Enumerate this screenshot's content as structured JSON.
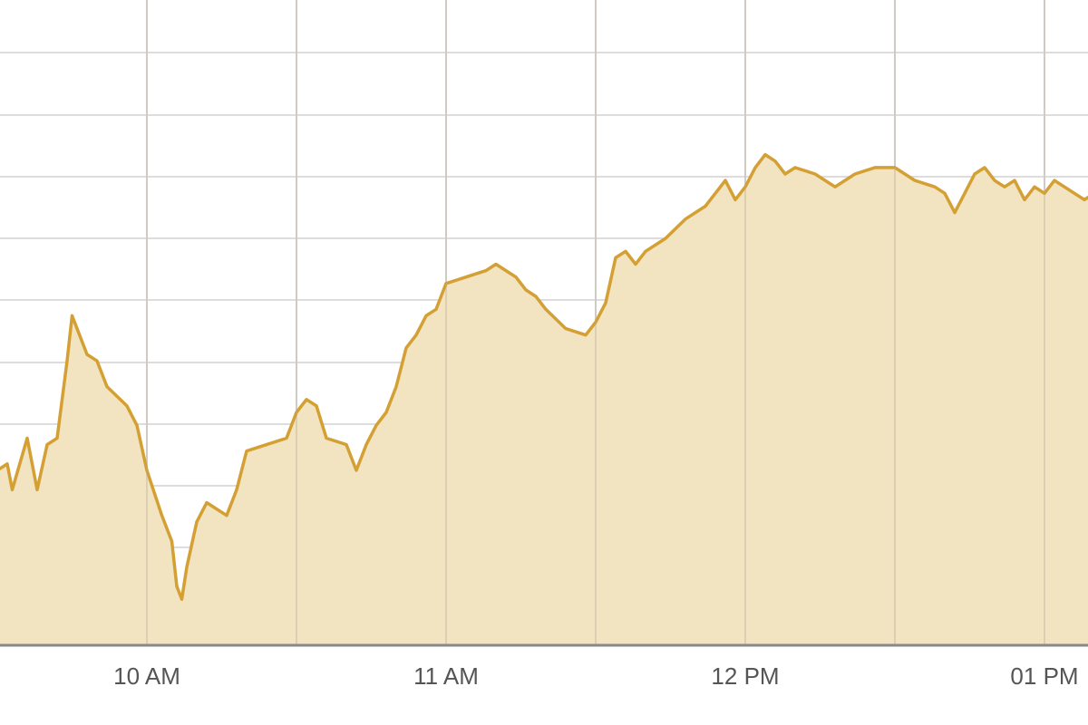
{
  "chart_data": {
    "type": "area",
    "title": "",
    "xlabel": "",
    "ylabel": "",
    "x_ticks": [
      {
        "label": "10 AM",
        "value": "10:00"
      },
      {
        "label": "11 AM",
        "value": "11:00"
      },
      {
        "label": "12 PM",
        "value": "12:00"
      },
      {
        "label": "01 PM",
        "value": "13:00"
      }
    ],
    "xlim": [
      "09:30",
      "13:15"
    ],
    "grid": true,
    "legend": "none",
    "y_unit": "fraction of plot height",
    "ylim": [
      0,
      1
    ],
    "series": [
      {
        "color": "#d4a034",
        "fill": "#f2e3c1",
        "points": [
          [
            "09:30",
            0.27
          ],
          [
            "09:32",
            0.28
          ],
          [
            "09:33",
            0.24
          ],
          [
            "09:36",
            0.32
          ],
          [
            "09:38",
            0.24
          ],
          [
            "09:40",
            0.31
          ],
          [
            "09:42",
            0.32
          ],
          [
            "09:44",
            0.44
          ],
          [
            "09:45",
            0.51
          ],
          [
            "09:46",
            0.49
          ],
          [
            "09:48",
            0.45
          ],
          [
            "09:50",
            0.44
          ],
          [
            "09:52",
            0.4
          ],
          [
            "09:56",
            0.37
          ],
          [
            "09:58",
            0.34
          ],
          [
            "10:00",
            0.27
          ],
          [
            "10:03",
            0.2
          ],
          [
            "10:05",
            0.16
          ],
          [
            "10:06",
            0.09
          ],
          [
            "10:07",
            0.07
          ],
          [
            "10:08",
            0.12
          ],
          [
            "10:10",
            0.19
          ],
          [
            "10:12",
            0.22
          ],
          [
            "10:16",
            0.2
          ],
          [
            "10:18",
            0.24
          ],
          [
            "10:20",
            0.3
          ],
          [
            "10:24",
            0.31
          ],
          [
            "10:28",
            0.32
          ],
          [
            "10:30",
            0.36
          ],
          [
            "10:32",
            0.38
          ],
          [
            "10:34",
            0.37
          ],
          [
            "10:36",
            0.32
          ],
          [
            "10:40",
            0.31
          ],
          [
            "10:42",
            0.27
          ],
          [
            "10:44",
            0.31
          ],
          [
            "10:46",
            0.34
          ],
          [
            "10:48",
            0.36
          ],
          [
            "10:50",
            0.4
          ],
          [
            "10:52",
            0.46
          ],
          [
            "10:54",
            0.48
          ],
          [
            "10:56",
            0.51
          ],
          [
            "10:58",
            0.52
          ],
          [
            "11:00",
            0.56
          ],
          [
            "11:04",
            0.57
          ],
          [
            "11:08",
            0.58
          ],
          [
            "11:10",
            0.59
          ],
          [
            "11:12",
            0.58
          ],
          [
            "11:14",
            0.57
          ],
          [
            "11:16",
            0.55
          ],
          [
            "11:18",
            0.54
          ],
          [
            "11:20",
            0.52
          ],
          [
            "11:24",
            0.49
          ],
          [
            "11:28",
            0.48
          ],
          [
            "11:30",
            0.5
          ],
          [
            "11:32",
            0.53
          ],
          [
            "11:34",
            0.6
          ],
          [
            "11:36",
            0.61
          ],
          [
            "11:38",
            0.59
          ],
          [
            "11:40",
            0.61
          ],
          [
            "11:44",
            0.63
          ],
          [
            "11:48",
            0.66
          ],
          [
            "11:52",
            0.68
          ],
          [
            "11:54",
            0.7
          ],
          [
            "11:56",
            0.72
          ],
          [
            "11:58",
            0.69
          ],
          [
            "12:00",
            0.71
          ],
          [
            "12:02",
            0.74
          ],
          [
            "12:04",
            0.76
          ],
          [
            "12:06",
            0.75
          ],
          [
            "12:08",
            0.73
          ],
          [
            "12:10",
            0.74
          ],
          [
            "12:14",
            0.73
          ],
          [
            "12:18",
            0.71
          ],
          [
            "12:22",
            0.73
          ],
          [
            "12:26",
            0.74
          ],
          [
            "12:30",
            0.74
          ],
          [
            "12:34",
            0.72
          ],
          [
            "12:38",
            0.71
          ],
          [
            "12:40",
            0.7
          ],
          [
            "12:42",
            0.67
          ],
          [
            "12:44",
            0.7
          ],
          [
            "12:46",
            0.73
          ],
          [
            "12:48",
            0.74
          ],
          [
            "12:50",
            0.72
          ],
          [
            "12:52",
            0.71
          ],
          [
            "12:54",
            0.72
          ],
          [
            "12:56",
            0.69
          ],
          [
            "12:58",
            0.71
          ],
          [
            "13:00",
            0.7
          ],
          [
            "13:02",
            0.72
          ],
          [
            "13:04",
            0.71
          ],
          [
            "13:06",
            0.7
          ],
          [
            "13:08",
            0.69
          ],
          [
            "13:10",
            0.7
          ],
          [
            "13:12",
            0.69
          ],
          [
            "13:14",
            0.68
          ],
          [
            "13:15",
            0.68
          ]
        ]
      }
    ]
  }
}
